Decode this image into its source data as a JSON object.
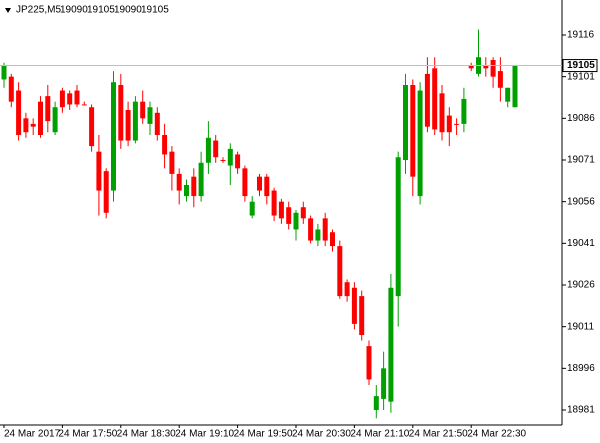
{
  "chart_data": {
    "type": "candlestick",
    "title": "JP225,M5",
    "categories": [
      "24 Mar 2017",
      null,
      null,
      null,
      null,
      null,
      null,
      null,
      "24 Mar 17:50",
      null,
      null,
      null,
      null,
      null,
      null,
      null,
      "24 Mar 18:30",
      null,
      null,
      null,
      null,
      null,
      null,
      null,
      "24 Mar 19:10",
      null,
      null,
      null,
      null,
      null,
      null,
      null,
      "24 Mar 19:50",
      null,
      null,
      null,
      null,
      null,
      null,
      null,
      "24 Mar 20:30",
      null,
      null,
      null,
      null,
      null,
      null,
      null,
      "24 Mar 21:10",
      null,
      null,
      null,
      null,
      null,
      null,
      null,
      "24 Mar 21:50",
      null,
      null,
      null,
      null,
      null,
      null,
      null,
      "24 Mar 22:30",
      null,
      null,
      null,
      null,
      null,
      null
    ],
    "open": [
      19100,
      19101,
      19096,
      19086,
      19084,
      19092,
      19094,
      19081,
      19096,
      19095,
      19096,
      19091,
      19090,
      19074,
      19067,
      19060,
      19098,
      19089,
      19078,
      19092,
      19084,
      19088,
      19080,
      19074,
      19066,
      19058,
      19065,
      19058,
      19070,
      19078,
      19071,
      19069,
      19073,
      19068,
      19051,
      19065,
      19065,
      19060,
      19056,
      19054,
      19046,
      19054,
      19050,
      19042,
      19050,
      19045,
      19040,
      19027,
      19025,
      19022,
      19004,
      18981,
      18985,
      18984,
      19022,
      19071,
      19098,
      19058,
      19102,
      19104,
      19095,
      19087,
      19084,
      19084,
      19105,
      19102,
      19105,
      19107,
      19103,
      19092,
      19090
    ],
    "high": [
      19106,
      19102,
      19099,
      19088,
      19086,
      19094,
      19098,
      19092,
      19097,
      19096,
      19098,
      19092,
      19091,
      19080,
      19068,
      19103,
      19102,
      19092,
      19094,
      19096,
      19092,
      19090,
      19084,
      19076,
      19068,
      19064,
      19068,
      19074,
      19085,
      19080,
      19072,
      19077,
      19074,
      19069,
      19058,
      19066,
      19066,
      19061,
      19057,
      19056,
      19053,
      19056,
      19051,
      19048,
      19052,
      19046,
      19042,
      19028,
      19027,
      19024,
      19006,
      18990,
      19002,
      19030,
      19074,
      19102,
      19100,
      19099,
      19108,
      19108,
      19098,
      19090,
      19086,
      19097,
      19106,
      19118,
      19108,
      19108,
      19108,
      19097,
      19105
    ],
    "low": [
      19097,
      19090,
      19078,
      19079,
      19080,
      19079,
      19081,
      19080,
      19088,
      19089,
      19090,
      19091,
      19074,
      19051,
      19050,
      19056,
      19075,
      19076,
      19077,
      19084,
      19080,
      19078,
      19068,
      19060,
      19055,
      19056,
      19054,
      19056,
      19066,
      19070,
      19070,
      19062,
      19066,
      19056,
      19050,
      19058,
      19055,
      19049,
      19048,
      19046,
      19042,
      19048,
      19041,
      19040,
      19040,
      19038,
      19021,
      19020,
      19010,
      19006,
      18990,
      18978,
      18981,
      18980,
      19011,
      19066,
      19058,
      19055,
      19081,
      19080,
      19078,
      19076,
      19080,
      19081,
      19103,
      19101,
      19101,
      19097,
      19092,
      19090,
      19090
    ],
    "close": [
      19105,
      19092,
      19080,
      19081,
      19083,
      19080,
      19085,
      19090,
      19090,
      19091,
      19091,
      19091,
      19076,
      19060,
      19052,
      19099,
      19078,
      19078,
      19092,
      19086,
      19090,
      19080,
      19073,
      19066,
      19060,
      19062,
      19058,
      19070,
      19079,
      19072,
      19071,
      19075,
      19068,
      19058,
      19056,
      19060,
      19058,
      19051,
      19050,
      19048,
      19052,
      19050,
      19042,
      19046,
      19042,
      19040,
      19022,
      19022,
      19012,
      19008,
      18992,
      18986,
      18996,
      19025,
      19072,
      19098,
      19065,
      19096,
      19083,
      19082,
      19081,
      19081,
      19084,
      19093,
      19104,
      19108,
      19104,
      19101,
      19097,
      19097,
      19105
    ],
    "up_color": "#00a000",
    "down_color": "#ff0000",
    "last_price": 19105,
    "ylim": [
      18975.6,
      19128.6
    ],
    "yticks": [
      18981,
      18996,
      19011,
      19026,
      19041,
      19056,
      19071,
      19086,
      19101,
      19116
    ]
  }
}
